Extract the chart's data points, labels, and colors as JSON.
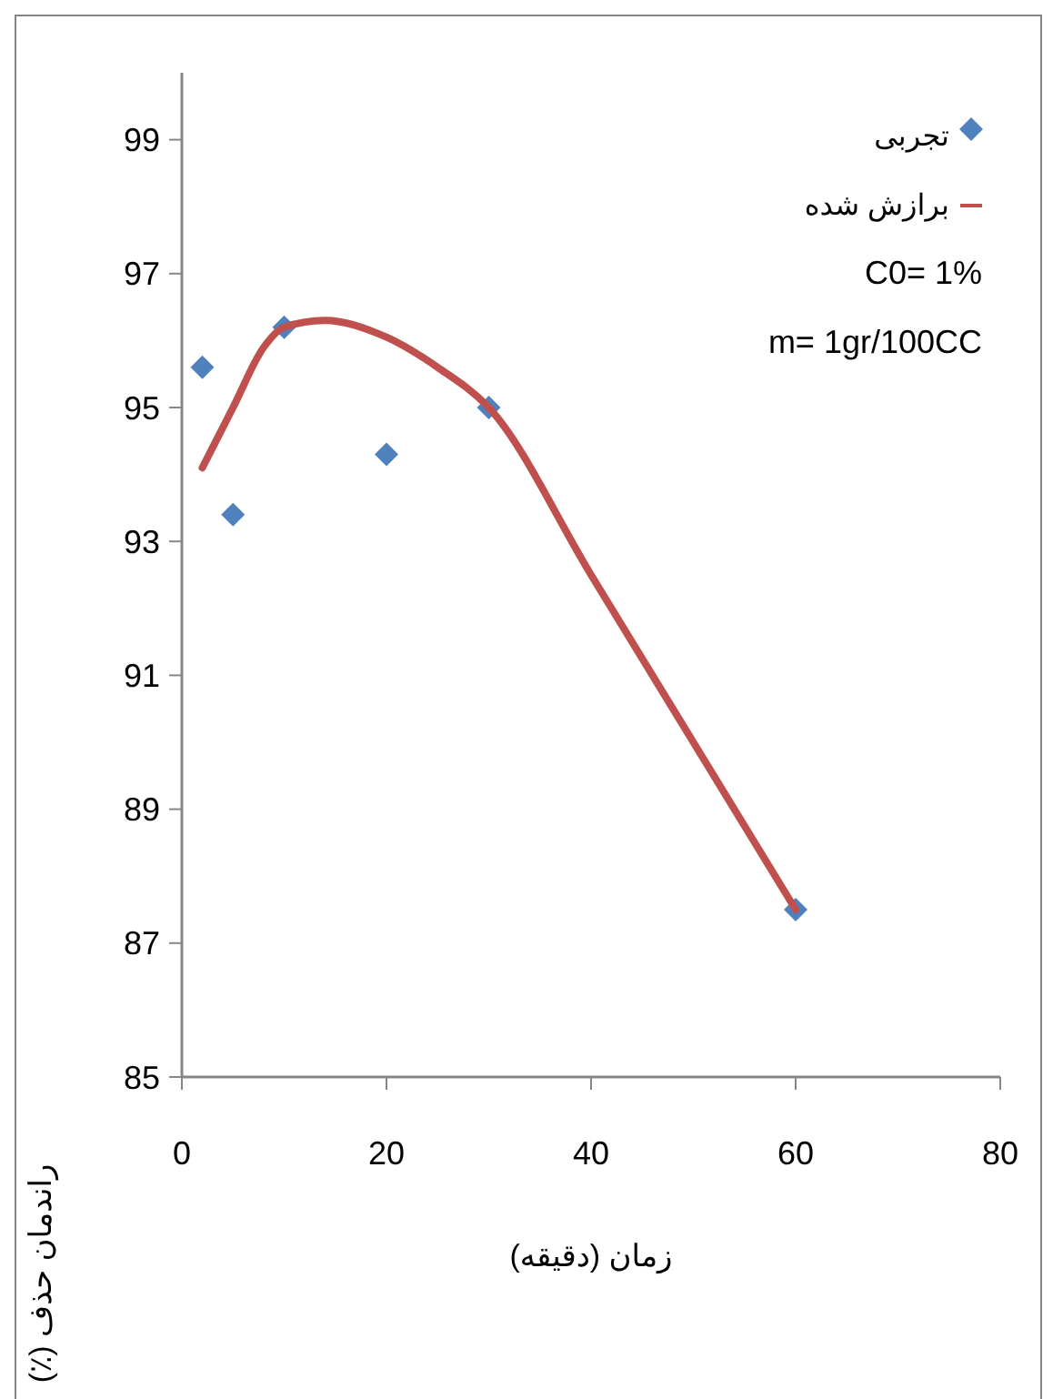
{
  "chart_data": {
    "type": "scatter",
    "xlabel": "زمان (دقیقه)",
    "ylabel": "راندمان حذف (٪)",
    "xlim": [
      0,
      80
    ],
    "xticks": [
      0,
      20,
      40,
      60,
      80
    ],
    "ylim": [
      85,
      100
    ],
    "yticks": [
      85,
      87,
      89,
      91,
      93,
      95,
      97,
      99
    ],
    "grid": false,
    "legend": "top right",
    "series": [
      {
        "name": "تجربی",
        "marker": "diamond",
        "color": "#4f81bd",
        "x": [
          2,
          5,
          10,
          20,
          30,
          60
        ],
        "values": [
          95.6,
          93.4,
          96.2,
          94.3,
          95,
          87.5
        ]
      },
      {
        "name": "برازش شده",
        "type": "line",
        "marker": "none",
        "line_style": "solid",
        "color": "#c0504d",
        "x": [
          2,
          5,
          8,
          10,
          14,
          20,
          25,
          30,
          40,
          50,
          60
        ],
        "values": [
          94.1,
          95,
          95.9,
          96.2,
          96.3,
          96.05,
          95.6,
          95,
          92.5,
          90,
          87.5
        ]
      }
    ],
    "annotations": [
      "C0= 1%",
      "m= 1gr/100CC"
    ]
  }
}
